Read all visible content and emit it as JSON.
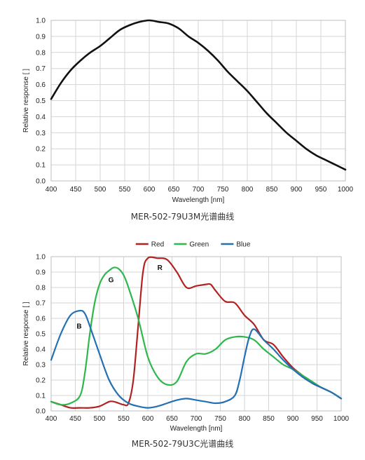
{
  "chart_data": [
    {
      "type": "line",
      "title": "",
      "xlabel": "Wavelength [nm]",
      "ylabel": "Relative response [ ]",
      "caption": "MER-502-79U3M光谱曲线",
      "xlim": [
        400,
        1000
      ],
      "ylim": [
        0,
        1.0
      ],
      "xticks": [
        400,
        450,
        500,
        550,
        600,
        650,
        700,
        750,
        800,
        850,
        900,
        950,
        1000
      ],
      "yticks": [
        0.0,
        0.1,
        0.2,
        0.3,
        0.4,
        0.5,
        0.6,
        0.7,
        0.8,
        0.9,
        1.0
      ],
      "grid": true,
      "series": [
        {
          "color": "#111111",
          "x": [
            400,
            420,
            440,
            460,
            480,
            500,
            520,
            540,
            560,
            580,
            600,
            620,
            640,
            660,
            680,
            700,
            720,
            740,
            760,
            780,
            800,
            820,
            840,
            860,
            880,
            900,
            920,
            940,
            960,
            980,
            1000
          ],
          "y": [
            0.51,
            0.61,
            0.69,
            0.75,
            0.8,
            0.84,
            0.89,
            0.94,
            0.97,
            0.99,
            1.0,
            0.99,
            0.98,
            0.95,
            0.9,
            0.86,
            0.81,
            0.75,
            0.68,
            0.62,
            0.56,
            0.49,
            0.42,
            0.36,
            0.3,
            0.25,
            0.2,
            0.16,
            0.13,
            0.1,
            0.07
          ]
        }
      ]
    },
    {
      "type": "line",
      "title": "",
      "xlabel": "Wavelength [nm]",
      "ylabel": "Relative response [ ]",
      "caption": "MER-502-79U3C光谱曲线",
      "xlim": [
        400,
        1000
      ],
      "ylim": [
        0,
        1.0
      ],
      "xticks": [
        400,
        450,
        500,
        550,
        600,
        650,
        700,
        750,
        800,
        850,
        900,
        950,
        1000
      ],
      "yticks": [
        0.0,
        0.1,
        0.2,
        0.3,
        0.4,
        0.5,
        0.6,
        0.7,
        0.8,
        0.9,
        1.0
      ],
      "grid": true,
      "legend": "top-center",
      "series": [
        {
          "name": "Red",
          "label": "R",
          "label_at": [
            625,
            0.93
          ],
          "color": "#b22222",
          "x": [
            400,
            420,
            440,
            460,
            480,
            500,
            520,
            530,
            540,
            550,
            560,
            570,
            580,
            590,
            600,
            620,
            640,
            660,
            680,
            700,
            720,
            730,
            740,
            760,
            780,
            800,
            820,
            840,
            860,
            880,
            900,
            920,
            940,
            960,
            980,
            1000
          ],
          "y": [
            0.06,
            0.04,
            0.02,
            0.02,
            0.02,
            0.03,
            0.06,
            0.06,
            0.05,
            0.04,
            0.05,
            0.2,
            0.55,
            0.9,
            0.99,
            0.99,
            0.98,
            0.9,
            0.8,
            0.81,
            0.82,
            0.82,
            0.78,
            0.71,
            0.7,
            0.62,
            0.56,
            0.46,
            0.43,
            0.35,
            0.28,
            0.23,
            0.18,
            0.15,
            0.12,
            0.08
          ]
        },
        {
          "name": "Green",
          "label": "G",
          "label_at": [
            524,
            0.85
          ],
          "color": "#2db84d",
          "x": [
            400,
            420,
            440,
            460,
            470,
            480,
            490,
            500,
            510,
            520,
            530,
            540,
            550,
            560,
            580,
            600,
            620,
            640,
            660,
            680,
            700,
            720,
            740,
            760,
            780,
            800,
            820,
            840,
            860,
            880,
            900,
            920,
            940,
            960,
            980,
            1000
          ],
          "y": [
            0.06,
            0.04,
            0.05,
            0.1,
            0.25,
            0.5,
            0.7,
            0.82,
            0.88,
            0.91,
            0.93,
            0.92,
            0.88,
            0.8,
            0.6,
            0.35,
            0.22,
            0.17,
            0.19,
            0.32,
            0.37,
            0.37,
            0.4,
            0.46,
            0.48,
            0.48,
            0.46,
            0.4,
            0.35,
            0.3,
            0.27,
            0.23,
            0.19,
            0.15,
            0.12,
            0.08
          ]
        },
        {
          "name": "Blue",
          "label": "B",
          "label_at": [
            458,
            0.55
          ],
          "color": "#2370b5",
          "x": [
            400,
            420,
            440,
            460,
            470,
            480,
            500,
            520,
            540,
            560,
            580,
            600,
            620,
            640,
            660,
            680,
            700,
            720,
            740,
            760,
            780,
            790,
            800,
            810,
            820,
            840,
            860,
            880,
            900,
            920,
            940,
            960,
            980,
            1000
          ],
          "y": [
            0.33,
            0.5,
            0.62,
            0.65,
            0.63,
            0.55,
            0.37,
            0.2,
            0.1,
            0.05,
            0.03,
            0.02,
            0.03,
            0.05,
            0.07,
            0.08,
            0.07,
            0.06,
            0.05,
            0.06,
            0.1,
            0.2,
            0.35,
            0.48,
            0.53,
            0.46,
            0.4,
            0.33,
            0.27,
            0.22,
            0.18,
            0.15,
            0.12,
            0.08
          ]
        }
      ]
    }
  ]
}
